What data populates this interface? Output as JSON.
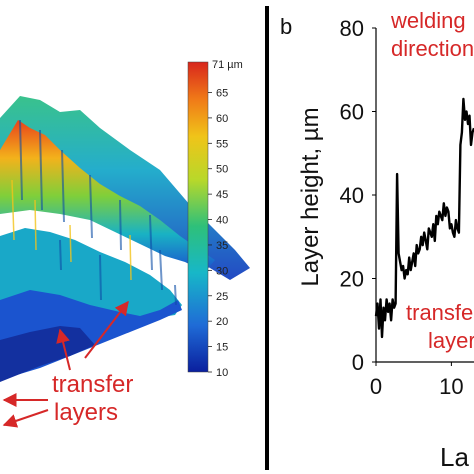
{
  "chart_data": [
    {
      "type": "heatmap",
      "description_kind": "3d-surface",
      "colorbar": {
        "unit_label": "71 µm",
        "ticks": [
          "65",
          "60",
          "55",
          "50",
          "45",
          "40",
          "35",
          "30",
          "25",
          "20",
          "15",
          "10"
        ],
        "range": [
          10,
          71
        ],
        "colors": [
          "#0a1f9e",
          "#1f6bd6",
          "#17b7c8",
          "#2ec07a",
          "#b8d82a",
          "#f0c419",
          "#f07a18",
          "#d8261c"
        ]
      },
      "annotations": {
        "transfer_layers_line1": "transfer",
        "transfer_layers_line2": "layers"
      }
    },
    {
      "type": "line",
      "panel_label": "b",
      "ylabel": "Layer height, µm",
      "xlabel": "La",
      "ylim": [
        0,
        80
      ],
      "yticks": [
        "80",
        "60",
        "40",
        "20",
        "0"
      ],
      "xticks": [
        "0",
        "10"
      ],
      "xlim": [
        0,
        13
      ],
      "annotations": {
        "welding_line1": "welding",
        "welding_line2": "direction",
        "transfer_line1": "transfer",
        "transfer_line2": "layers"
      },
      "series": [
        {
          "x": [
            0.0,
            0.2,
            0.4,
            0.6,
            0.8,
            1.0,
            1.2,
            1.4,
            1.6,
            1.8,
            2.0,
            2.2,
            2.4,
            2.6,
            2.8,
            3.0,
            3.2,
            3.4,
            3.6,
            3.8,
            4.0,
            4.2,
            4.4,
            4.6,
            4.8,
            5.0,
            5.2,
            5.4,
            5.6,
            5.8,
            6.0,
            6.2,
            6.4,
            6.6,
            6.8,
            7.0,
            7.2,
            7.4,
            7.6,
            7.8,
            8.0,
            8.2,
            8.4,
            8.6,
            8.8,
            9.0,
            9.2,
            9.4,
            9.6,
            9.8,
            10.0,
            10.2,
            10.4,
            10.6,
            10.8,
            11.0,
            11.2,
            11.4,
            11.6,
            11.8,
            12.0,
            12.2,
            12.4,
            12.6,
            12.8,
            13.0
          ],
          "values": [
            11,
            14,
            8,
            15,
            6,
            13,
            10,
            15,
            12,
            14,
            10,
            15,
            13,
            14,
            45,
            26,
            24,
            22,
            23,
            20,
            22,
            21,
            25,
            22,
            24,
            26,
            23,
            28,
            26,
            27,
            30,
            28,
            31,
            29,
            27,
            32,
            31,
            30,
            33,
            29,
            35,
            33,
            36,
            35,
            34,
            38,
            35,
            37,
            36,
            32,
            33,
            31,
            30,
            34,
            32,
            31,
            52,
            55,
            63,
            58,
            60,
            57,
            59,
            52,
            55,
            56
          ]
        }
      ]
    }
  ]
}
